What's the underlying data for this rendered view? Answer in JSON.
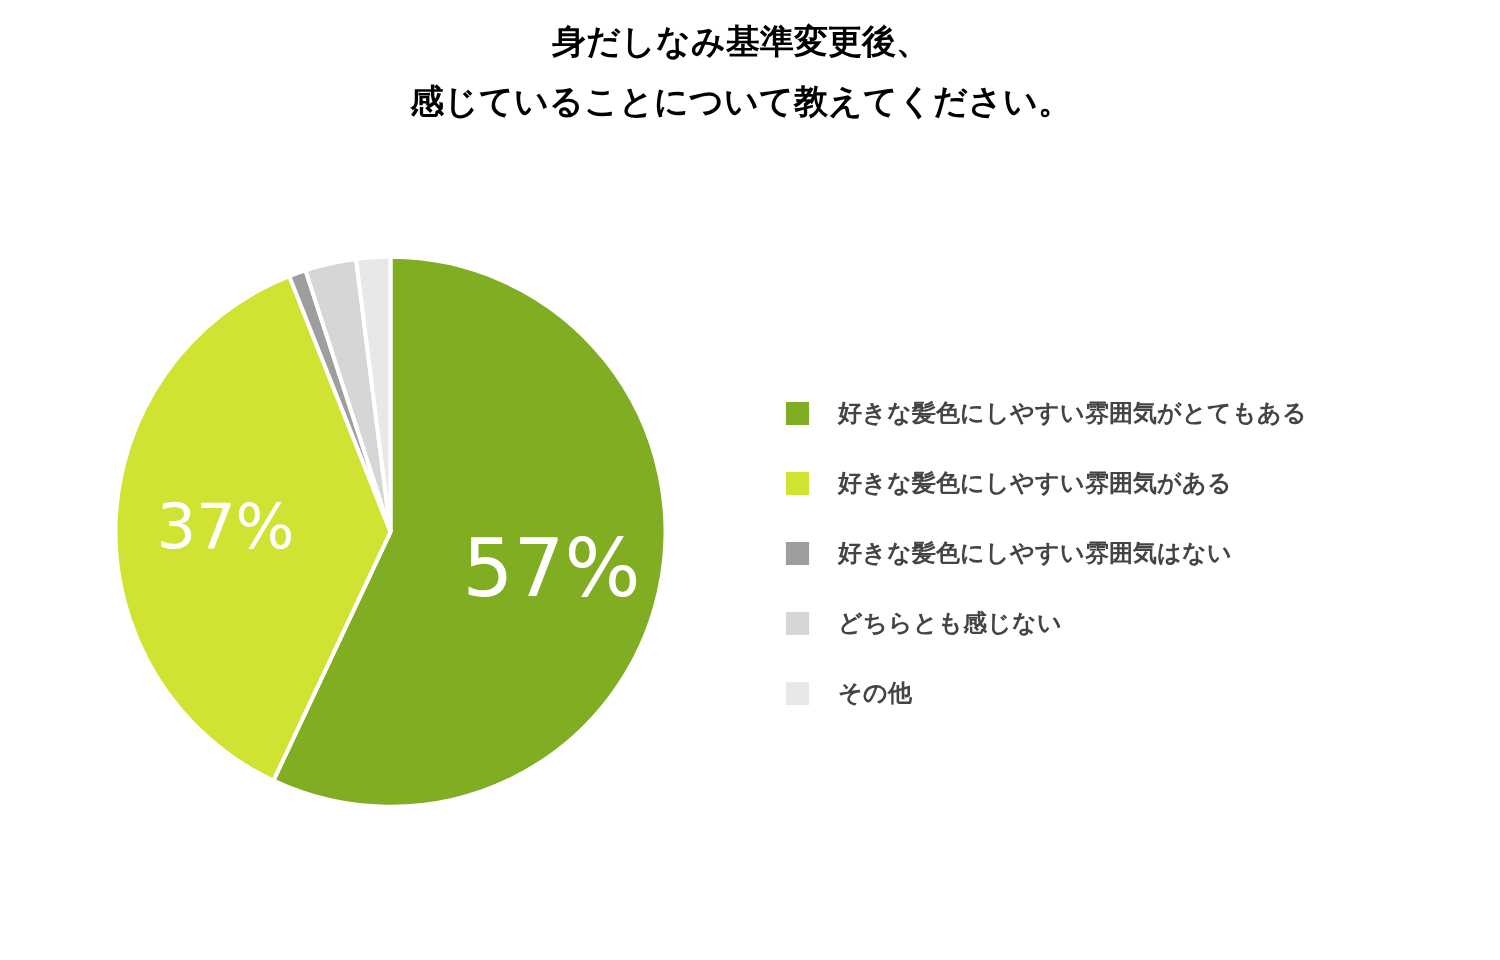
{
  "chart_data": {
    "type": "pie",
    "title": "身だしなみ基準変更後、感じていることについて教えてください。",
    "categories": [
      "好きな髪色にしやすい雰囲気がとてもある",
      "好きな髪色にしやすい雰囲気がある",
      "好きな髪色にしやすい雰囲気はない",
      "どちらとも感じない",
      "その他"
    ],
    "values": [
      57,
      37,
      1,
      3,
      2
    ],
    "colors": [
      "#80ad22",
      "#d0e232",
      "#9e9e9e",
      "#d6d6d6",
      "#e8e8e8"
    ],
    "value_labels": [
      "57%",
      "37%",
      null,
      null,
      null
    ],
    "legend": "right"
  }
}
